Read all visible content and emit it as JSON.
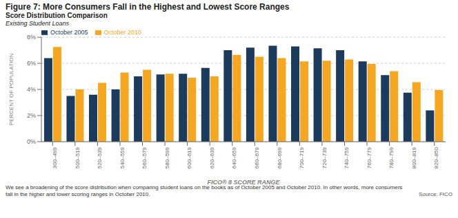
{
  "chart_data": {
    "type": "bar",
    "title": "Figure 7: More Consumers Fall in the Highest and Lowest Score Ranges",
    "subtitle": [
      "Score Distribution Comparison",
      "Existing Student Loans"
    ],
    "xlabel": "FICO® 8 SCORE RANGE",
    "ylabel": "PERCENT OF POPULATION",
    "categories": [
      "300–499",
      "500–519",
      "520–539",
      "540–559",
      "560–579",
      "580–599",
      "600–619",
      "620–639",
      "640–659",
      "660–679",
      "680–699",
      "700–719",
      "720–739",
      "740–759",
      "760–779",
      "780–799",
      "800–819",
      "820–850"
    ],
    "series": [
      {
        "name": "October 2005",
        "color": "#1b3a5c",
        "values": [
          6.4,
          3.5,
          3.6,
          4.0,
          5.0,
          5.15,
          5.2,
          5.65,
          7.0,
          7.2,
          7.35,
          7.3,
          7.15,
          7.0,
          6.15,
          5.1,
          3.75,
          2.4
        ]
      },
      {
        "name": "October 2010",
        "color": "#f5a623",
        "values": [
          7.25,
          4.0,
          4.5,
          5.3,
          5.5,
          5.2,
          4.9,
          5.0,
          6.65,
          6.5,
          6.4,
          6.15,
          6.2,
          6.3,
          5.95,
          5.4,
          4.55,
          3.95
        ]
      }
    ],
    "ylim": [
      0,
      8
    ],
    "yticks": [
      {
        "value": 0,
        "label": "0%"
      },
      {
        "value": 2,
        "label": "2%"
      },
      {
        "value": 4,
        "label": "4%"
      },
      {
        "value": 6,
        "label": "6%"
      },
      {
        "value": 8,
        "label": "8%"
      }
    ],
    "grid": true,
    "legend": "upper left",
    "annotations": [
      "We see a broadening of the score distribution when comparing student loans on the books as of October 2005 and October 2010. In other words, more consumers",
      "fall in the higher and lower scoring ranges in October 2010.",
      "Source: FICO"
    ]
  }
}
